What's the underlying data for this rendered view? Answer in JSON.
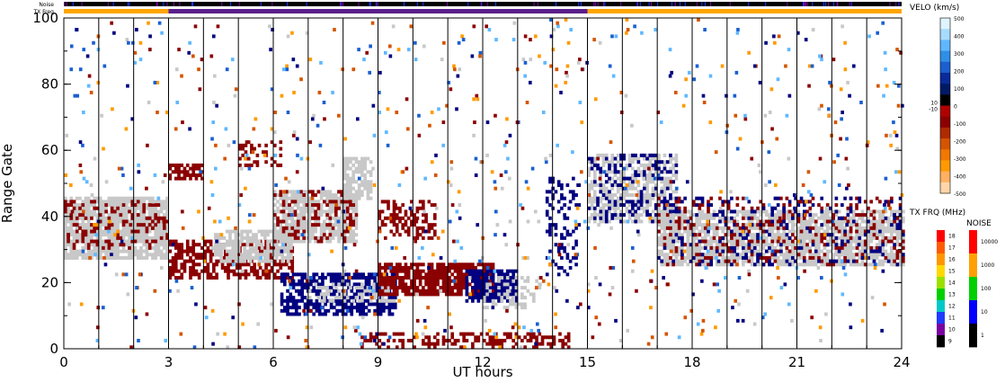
{
  "chart_data": {
    "type": "heatmap",
    "xlabel": "UT hours",
    "ylabel": "Range Gate",
    "x_ticks": [
      "0",
      "3",
      "6",
      "9",
      "12",
      "15",
      "18",
      "21",
      "24"
    ],
    "y_ticks": [
      "0",
      "20",
      "40",
      "60",
      "80",
      "100"
    ],
    "xlim": [
      0,
      24
    ],
    "ylim": [
      0,
      100
    ],
    "scan_boundaries_hours": [
      1,
      2,
      3,
      4,
      5,
      6,
      7,
      8,
      9,
      10,
      11,
      12,
      13,
      14,
      15,
      16,
      17,
      18,
      19,
      20,
      21,
      22,
      23
    ],
    "noise_label": "Noise",
    "txfreq_label": "TX Freq",
    "txfreq_segments": [
      {
        "start": 0,
        "end": 3,
        "color": "#ffa500"
      },
      {
        "start": 3,
        "end": 15,
        "color": "#5a1e8c"
      },
      {
        "start": 15,
        "end": 24,
        "color": "#ffa500"
      }
    ],
    "scatter_regions": [
      {
        "t0": 0.0,
        "t1": 3.0,
        "g0": 27,
        "g1": 46,
        "color": "#c8c8c8",
        "density": 0.85
      },
      {
        "t0": 0.0,
        "t1": 3.0,
        "g0": 30,
        "g1": 45,
        "color": "#8b0000",
        "density": 0.25
      },
      {
        "t0": 3.0,
        "t1": 6.5,
        "g0": 21,
        "g1": 33,
        "color": "#8b0000",
        "density": 0.6
      },
      {
        "t0": 4.3,
        "t1": 6.5,
        "g0": 26,
        "g1": 36,
        "color": "#c8c8c8",
        "density": 0.7
      },
      {
        "t0": 3.0,
        "t1": 4.0,
        "g0": 51,
        "g1": 56,
        "color": "#8b0000",
        "density": 0.6
      },
      {
        "t0": 5.0,
        "t1": 6.2,
        "g0": 55,
        "g1": 63,
        "color": "#8b0000",
        "density": 0.35
      },
      {
        "t0": 6.0,
        "t1": 8.4,
        "g0": 32,
        "g1": 48,
        "color": "#c8c8c8",
        "density": 0.75
      },
      {
        "t0": 6.0,
        "t1": 8.4,
        "g0": 32,
        "g1": 48,
        "color": "#8b0000",
        "density": 0.2
      },
      {
        "t0": 8.0,
        "t1": 8.8,
        "g0": 45,
        "g1": 58,
        "color": "#c8c8c8",
        "density": 0.7
      },
      {
        "t0": 6.2,
        "t1": 9.5,
        "g0": 10,
        "g1": 23,
        "color": "#000080",
        "density": 0.65
      },
      {
        "t0": 7.0,
        "t1": 9.5,
        "g0": 14,
        "g1": 20,
        "color": "#c8c8c8",
        "density": 0.35
      },
      {
        "t0": 9.0,
        "t1": 12.3,
        "g0": 16,
        "g1": 26,
        "color": "#8b0000",
        "density": 0.8
      },
      {
        "t0": 11.5,
        "t1": 13.0,
        "g0": 14,
        "g1": 24,
        "color": "#000080",
        "density": 0.8
      },
      {
        "t0": 12.0,
        "t1": 13.6,
        "g0": 12,
        "g1": 22,
        "color": "#c8c8c8",
        "density": 0.35
      },
      {
        "t0": 9.0,
        "t1": 10.6,
        "g0": 33,
        "g1": 45,
        "color": "#8b0000",
        "density": 0.4
      },
      {
        "t0": 8.5,
        "t1": 14.5,
        "g0": 0,
        "g1": 5,
        "color": "#8b0000",
        "density": 0.45
      },
      {
        "t0": 13.8,
        "t1": 14.8,
        "g0": 22,
        "g1": 52,
        "color": "#000080",
        "density": 0.22
      },
      {
        "t0": 15.0,
        "t1": 17.5,
        "g0": 38,
        "g1": 59,
        "color": "#c8c8c8",
        "density": 0.55
      },
      {
        "t0": 15.0,
        "t1": 17.5,
        "g0": 38,
        "g1": 59,
        "color": "#000080",
        "density": 0.2
      },
      {
        "t0": 17.0,
        "t1": 24.0,
        "g0": 25,
        "g1": 42,
        "color": "#c8c8c8",
        "density": 0.75
      },
      {
        "t0": 17.0,
        "t1": 24.0,
        "g0": 25,
        "g1": 46,
        "color": "#8b0000",
        "density": 0.18
      },
      {
        "t0": 17.0,
        "t1": 24.0,
        "g0": 25,
        "g1": 46,
        "color": "#000080",
        "density": 0.12
      }
    ]
  },
  "velocity_scale": {
    "title": "VELO (km/s)",
    "labels": [
      "500",
      "400",
      "300",
      "200",
      "100",
      "0",
      "-100",
      "-200",
      "-300",
      "-400",
      "-500"
    ],
    "mid_labels": [
      "10",
      "-10"
    ],
    "colors": [
      "#dff4ff",
      "#a8dcff",
      "#5fb8ff",
      "#2f8fe6",
      "#1a5fd0",
      "#0a2a9a",
      "#001a66",
      "#000000",
      "#b00000",
      "#8b0000",
      "#b02a00",
      "#d45500",
      "#f07800",
      "#ff9a00",
      "#ffb060",
      "#ffd6a8"
    ]
  },
  "txfreq_scale": {
    "title": "TX FRQ (MHz)",
    "labels": [
      "18",
      "17",
      "16",
      "15",
      "14",
      "13",
      "12",
      "11",
      "10",
      "9"
    ],
    "colors": [
      "#ff0000",
      "#ff5a00",
      "#ff9600",
      "#ffd800",
      "#9be000",
      "#00d000",
      "#00c8c8",
      "#1e3cff",
      "#7a00a0",
      "#000000"
    ]
  },
  "noise_scale": {
    "title": "NOISE",
    "labels": [
      "10000",
      "1000",
      "100",
      "10",
      "1"
    ],
    "colors": [
      "#ff0000",
      "#ffa000",
      "#00d000",
      "#0000ff",
      "#000000"
    ]
  }
}
